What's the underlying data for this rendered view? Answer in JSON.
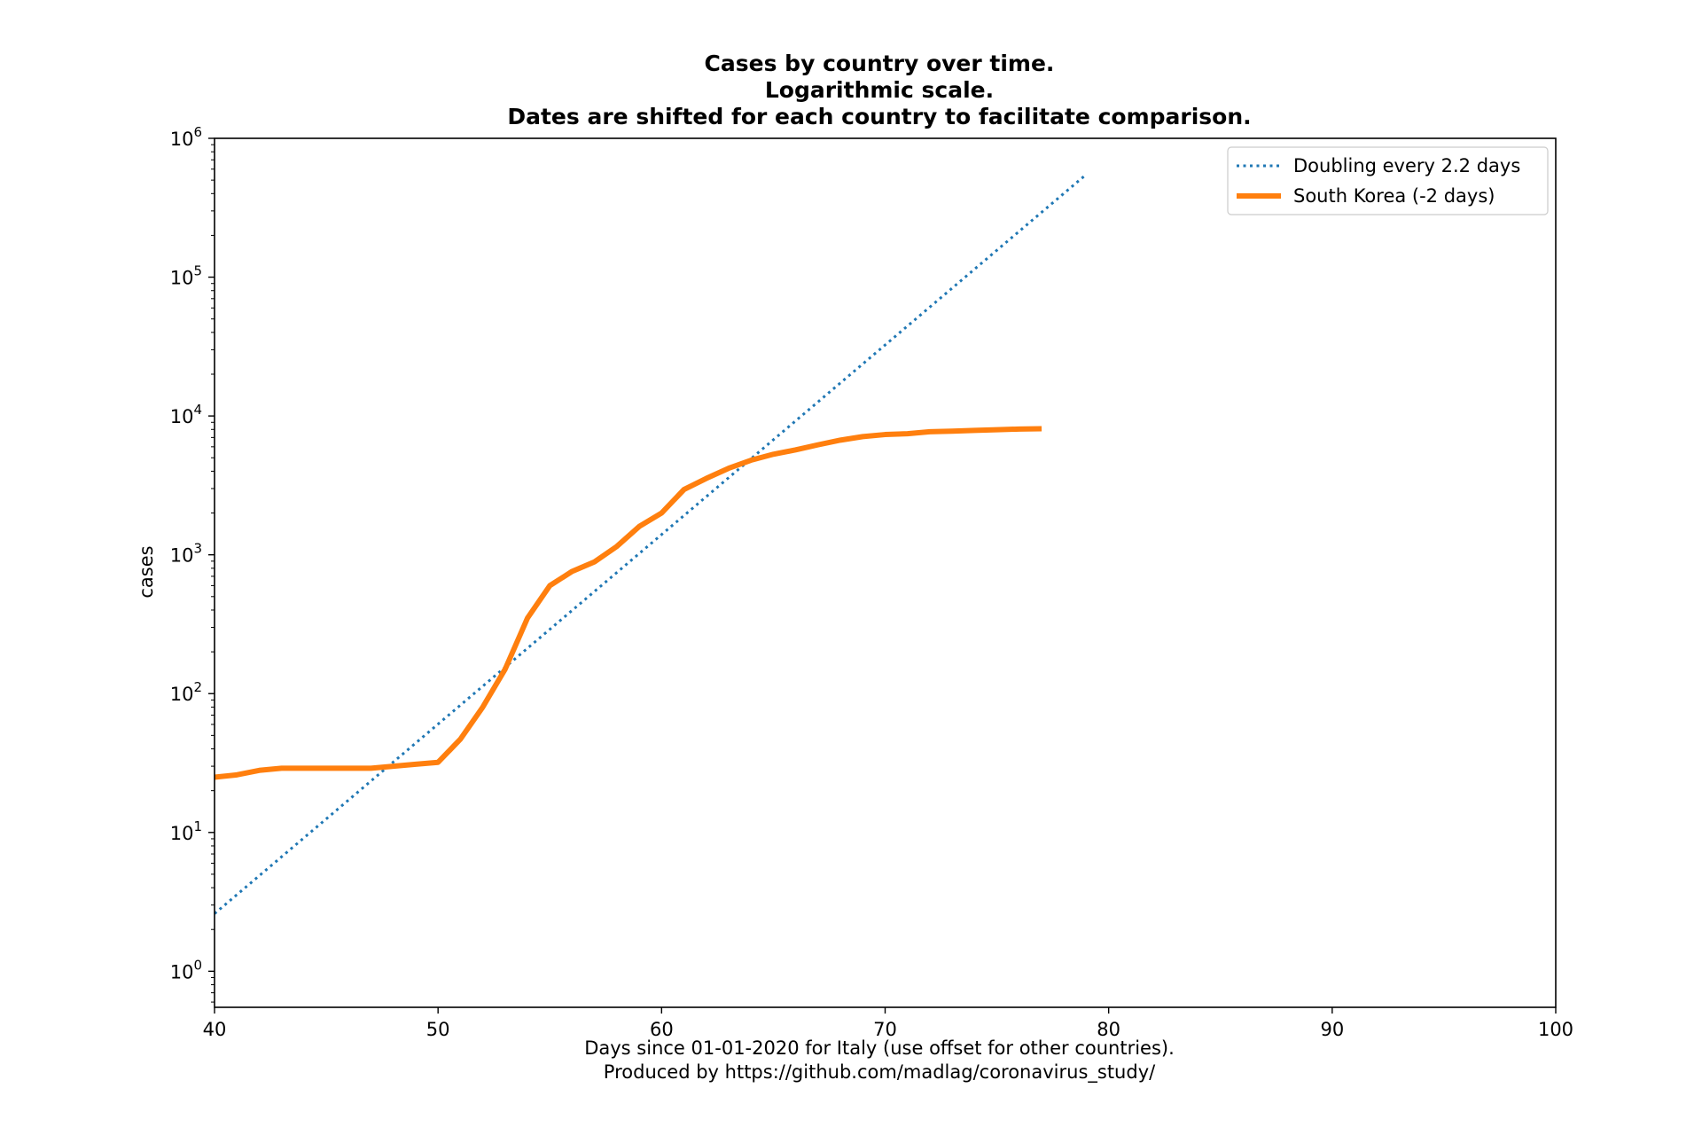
{
  "chart_data": {
    "type": "line",
    "title_lines": [
      "Cases by country over time.",
      "Logarithmic scale.",
      "Dates are shifted for each country to facilitate comparison."
    ],
    "xlabel_lines": [
      "Days since 01-01-2020 for Italy (use offset for other countries).",
      "Produced by https://github.com/madlag/coronavirus_study/"
    ],
    "ylabel": "cases",
    "xlim": [
      40,
      100
    ],
    "ylim": [
      0.55,
      1000000
    ],
    "yscale": "log",
    "x_ticks": [
      40,
      50,
      60,
      70,
      80,
      90,
      100
    ],
    "y_ticks": [
      {
        "value": 1,
        "base": "10",
        "exp": "0"
      },
      {
        "value": 10,
        "base": "10",
        "exp": "1"
      },
      {
        "value": 100,
        "base": "10",
        "exp": "2"
      },
      {
        "value": 1000,
        "base": "10",
        "exp": "3"
      },
      {
        "value": 10000,
        "base": "10",
        "exp": "4"
      },
      {
        "value": 100000,
        "base": "10",
        "exp": "5"
      },
      {
        "value": 1000000,
        "base": "10",
        "exp": "6"
      }
    ],
    "grid": false,
    "legend_position": "top-right",
    "series": [
      {
        "name": "Doubling every 2.2 days",
        "color": "#1f77b4",
        "style": "dotted",
        "x": [
          40,
          79
        ],
        "y": [
          2.6,
          550000
        ]
      },
      {
        "name": "South Korea (-2 days)",
        "color": "#ff7f0e",
        "style": "solid",
        "x": [
          40,
          41,
          42,
          43,
          44,
          45,
          46,
          47,
          48,
          49,
          50,
          51,
          52,
          53,
          54,
          55,
          56,
          57,
          58,
          59,
          60,
          61,
          62,
          63,
          64,
          65,
          66,
          67,
          68,
          69,
          70,
          71,
          72,
          73,
          74,
          75,
          76,
          77
        ],
        "y": [
          25,
          26,
          28,
          29,
          29,
          29,
          29,
          29,
          30,
          31,
          32,
          47,
          80,
          150,
          350,
          600,
          760,
          890,
          1150,
          1600,
          2000,
          2950,
          3550,
          4200,
          4800,
          5300,
          5700,
          6200,
          6700,
          7100,
          7350,
          7450,
          7700,
          7780,
          7880,
          7960,
          8050,
          8100
        ]
      }
    ]
  }
}
